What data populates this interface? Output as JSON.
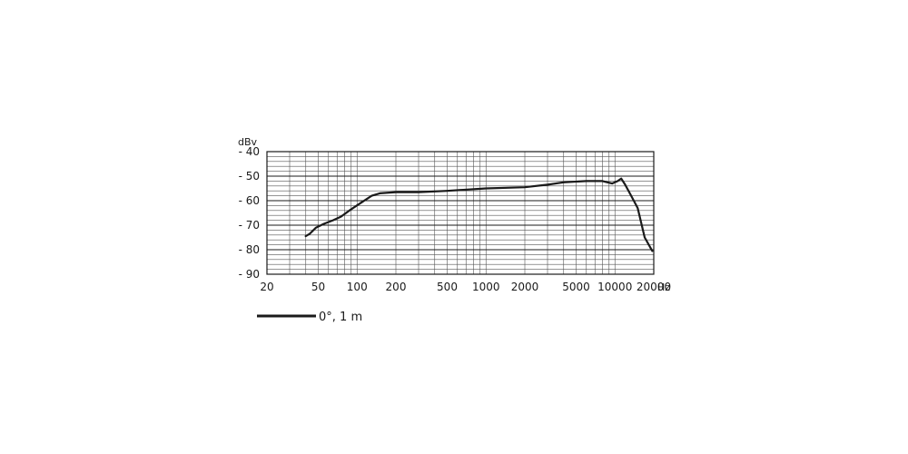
{
  "chart_data": {
    "type": "line",
    "y_unit": "dBv",
    "x_unit": "Hz",
    "x_scale": "log",
    "grid": true,
    "xlim": [
      20,
      20000
    ],
    "ylim": [
      -90,
      -40
    ],
    "x_tick_labels": [
      "20",
      "50",
      "100",
      "200",
      "500",
      "1000",
      "2000",
      "5000",
      "10000",
      "20000"
    ],
    "y_tick_labels": [
      "- 40",
      "- 50",
      "- 60",
      "- 70",
      "- 80",
      "- 90"
    ],
    "x_ticks": [
      20,
      50,
      100,
      200,
      500,
      1000,
      2000,
      5000,
      10000,
      20000
    ],
    "y_ticks": [
      -40,
      -50,
      -60,
      -70,
      -80,
      -90
    ],
    "series": [
      {
        "name": "0°, 1 m",
        "color": "#1a1a1a",
        "x": [
          40,
          43,
          48,
          55,
          65,
          75,
          90,
          110,
          130,
          150,
          200,
          300,
          500,
          1000,
          2000,
          3000,
          4000,
          6000,
          8000,
          9500,
          10500,
          11200,
          12000,
          13500,
          15000,
          17000,
          19500
        ],
        "y": [
          -74.5,
          -73.5,
          -71,
          -69.5,
          -68,
          -66.5,
          -63.5,
          -60.5,
          -58,
          -57,
          -56.5,
          -56.5,
          -56,
          -55,
          -54.5,
          -53.5,
          -52.5,
          -52,
          -52,
          -53,
          -52,
          -51,
          -53.5,
          -58.5,
          -63,
          -75,
          -80.5
        ]
      }
    ]
  }
}
